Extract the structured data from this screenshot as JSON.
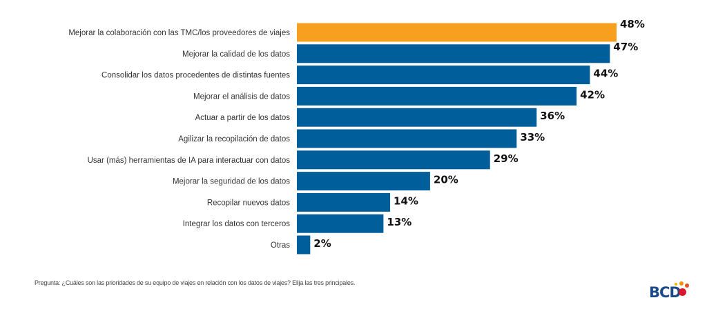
{
  "chart_data": {
    "type": "bar",
    "orientation": "horizontal",
    "categories": [
      "Mejorar la colaboración con las TMC/los proveedores de viajes",
      "Mejorar la calidad de los datos",
      "Consolidar los datos procedentes de distintas fuentes",
      "Mejorar el análisis de datos",
      "Actuar a partir de los datos",
      "Agilizar la recopilación de datos",
      "Usar (más) herramientas de IA para interactuar con datos",
      "Mejorar la seguridad de los datos",
      "Recopilar nuevos datos",
      "Integrar los datos con terceros",
      "Otras"
    ],
    "values": [
      48,
      47,
      44,
      42,
      36,
      33,
      29,
      20,
      14,
      13,
      2
    ],
    "value_labels": [
      "48%",
      "47%",
      "44%",
      "42%",
      "36%",
      "33%",
      "29%",
      "20%",
      "14%",
      "13%",
      "2%"
    ],
    "unit": "%",
    "highlight_index": 0,
    "colors": {
      "highlight": "#F7A01F",
      "default": "#005F9B"
    },
    "xlim": [
      0,
      48
    ],
    "grid": false,
    "legend": "none"
  },
  "footer": {
    "question": "Pregunta: ¿Cuáles son las prioridades de su equipo de viajes en relación con los datos de viajes? Elija las tres principales.",
    "logo": "BCD"
  }
}
